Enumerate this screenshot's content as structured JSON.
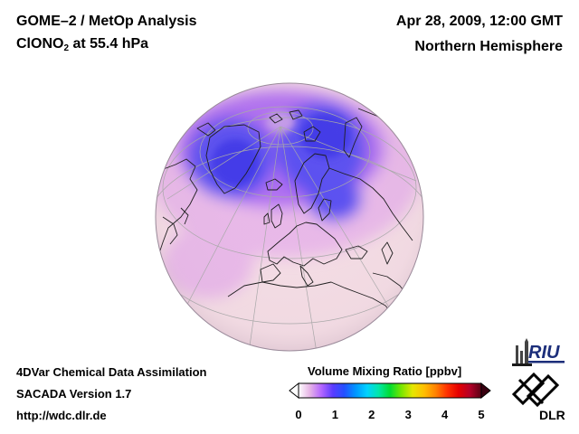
{
  "header": {
    "title_line1": "GOME–2 / MetOp Analysis",
    "species_prefix": "ClONO",
    "species_subscript": "2",
    "species_suffix": " at 55.4 hPa",
    "date": "Apr 28, 2009, 12:00 GMT",
    "region": "Northern Hemisphere"
  },
  "footer": {
    "line1": "4DVar Chemical Data Assimilation",
    "line2": "SACADA Version 1.7",
    "line3": "http://wdc.dlr.de"
  },
  "colorbar": {
    "title": "Volume Mixing Ratio [ppbv]",
    "ticks": [
      "0",
      "1",
      "2",
      "3",
      "4",
      "5"
    ],
    "range": [
      0,
      5
    ],
    "colors": [
      "#ffffff",
      "#e6b3e6",
      "#b366ff",
      "#5a3cff",
      "#2450ff",
      "#0096ff",
      "#00d2ff",
      "#00e6aa",
      "#00dc32",
      "#78e600",
      "#e6e600",
      "#ffbe00",
      "#ff8200",
      "#ff3200",
      "#e60000",
      "#b40028",
      "#5a0014"
    ]
  },
  "logos": {
    "riu": "RIU",
    "dlr": "DLR"
  },
  "map_colors": {
    "background": "#f4dce4",
    "low": "#e8b8e8",
    "mid": "#b070f0",
    "high": "#5a50f0",
    "peak": "#4038e8",
    "coast": "#1a1a1a",
    "grid": "#a8a8a8"
  }
}
